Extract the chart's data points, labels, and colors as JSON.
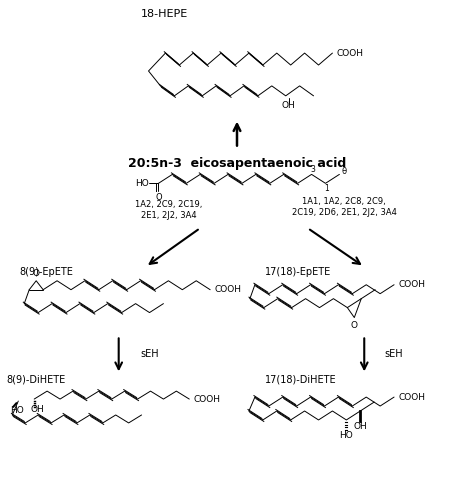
{
  "bg_color": "#ffffff",
  "labels": {
    "hepe": "18-HEPE",
    "epa": "20:5n-3  eicosapentaenoic acid",
    "epete_left": "8(9)-EpETE",
    "epete_right": "17(18)-EpETE",
    "dihete_left": "8(9)-DiHETE",
    "dihete_right": "17(18)-DiHETE",
    "enzyme_left": "1A2, 2C9, 2C19,\n2E1, 2J2, 3A4",
    "enzyme_right": "1A1, 1A2, 2C8, 2C9,\n2C19, 2D6, 2E1, 2J2, 3A4",
    "seh_left": "sEH",
    "seh_right": "sEH"
  }
}
